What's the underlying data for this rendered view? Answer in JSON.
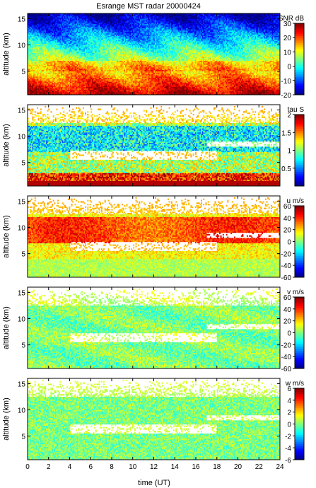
{
  "chart_data": {
    "title": "Esrange MST radar 20000424",
    "type": "heatmap",
    "xlabel": "time (UT)",
    "xlim": [
      0,
      24
    ],
    "xticks": [
      0,
      2,
      4,
      6,
      8,
      10,
      12,
      14,
      16,
      18,
      20,
      22,
      24
    ],
    "panels": [
      {
        "ylabel": "altitude (km)",
        "ylim": [
          0.5,
          16
        ],
        "yticks": [
          5,
          10,
          15
        ],
        "colorbar": {
          "label": "SNR dB",
          "range": [
            -20,
            30
          ],
          "ticks": [
            -20,
            -10,
            0,
            10,
            20,
            30
          ]
        },
        "field": "snr"
      },
      {
        "ylabel": "altitude (km)",
        "ylim": [
          0.5,
          16
        ],
        "yticks": [
          5,
          10,
          15
        ],
        "colorbar": {
          "label": "tau S",
          "range": [
            0,
            2
          ],
          "ticks": [
            0.5,
            1,
            1.5,
            2
          ]
        },
        "field": "tau"
      },
      {
        "ylabel": "altitude (km)",
        "ylim": [
          0.5,
          16
        ],
        "yticks": [
          5,
          10,
          15
        ],
        "colorbar": {
          "label": "u m/s",
          "range": [
            -60,
            60
          ],
          "ticks": [
            -60,
            -40,
            -20,
            0,
            20,
            40,
            60
          ]
        },
        "field": "u"
      },
      {
        "ylabel": "altitude (km)",
        "ylim": [
          0.5,
          16
        ],
        "yticks": [
          5,
          10,
          15
        ],
        "colorbar": {
          "label": "v m/s",
          "range": [
            -60,
            60
          ],
          "ticks": [
            -60,
            -40,
            -20,
            0,
            20,
            40,
            60
          ]
        },
        "field": "v"
      },
      {
        "ylabel": "altitude (km)",
        "ylim": [
          0.5,
          16
        ],
        "yticks": [
          5,
          10,
          15
        ],
        "colorbar": {
          "label": "w m/s",
          "range": [
            -6,
            6
          ],
          "ticks": [
            -6,
            -4,
            -2,
            0,
            2,
            4,
            6
          ]
        },
        "field": "w"
      }
    ]
  }
}
